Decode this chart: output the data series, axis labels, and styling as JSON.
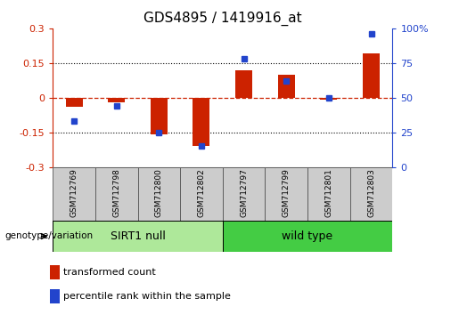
{
  "title": "GDS4895 / 1419916_at",
  "samples": [
    "GSM712769",
    "GSM712798",
    "GSM712800",
    "GSM712802",
    "GSM712797",
    "GSM712799",
    "GSM712801",
    "GSM712803"
  ],
  "red_bars": [
    -0.04,
    -0.02,
    -0.16,
    -0.21,
    0.12,
    0.1,
    -0.01,
    0.19
  ],
  "blue_dots": [
    33,
    44,
    25,
    15,
    78,
    62,
    50,
    96
  ],
  "ylim_left": [
    -0.3,
    0.3
  ],
  "ylim_right": [
    0,
    100
  ],
  "yticks_left": [
    -0.3,
    -0.15,
    0,
    0.15,
    0.3
  ],
  "yticks_right": [
    0,
    25,
    50,
    75,
    100
  ],
  "ytick_labels_right": [
    "0",
    "25",
    "50",
    "75",
    "100%"
  ],
  "group1_label": "SIRT1 null",
  "group2_label": "wild type",
  "genotype_label": "genotype/variation",
  "legend_red": "transformed count",
  "legend_blue": "percentile rank within the sample",
  "bar_color": "#cc2200",
  "dot_color": "#2244cc",
  "group1_color": "#aee89a",
  "group2_color": "#44cc44",
  "plot_bg": "#ffffff",
  "left_axis_color": "#cc2200",
  "right_axis_color": "#2244cc",
  "bar_width": 0.4
}
